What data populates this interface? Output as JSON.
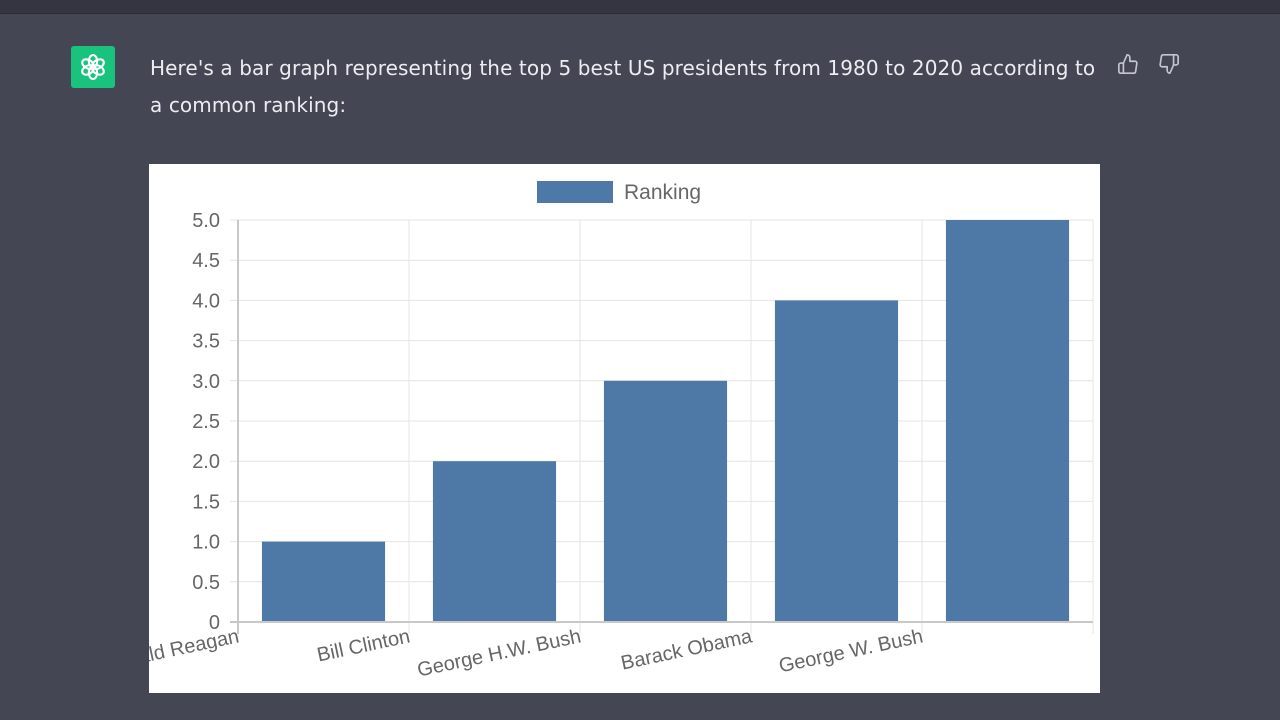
{
  "colors": {
    "background": "#444654",
    "avatar": "#19c37d",
    "text": "#ececf1",
    "bar": "#4e79a7",
    "grid": "#e4e4e4"
  },
  "icons": {
    "avatar": "openai-logo-icon",
    "like": "thumbs-up-icon",
    "dislike": "thumbs-down-icon"
  },
  "message": {
    "text": "Here's a bar graph representing the top 5 best US presidents from 1980 to 2020 according to a common ranking:"
  },
  "chart_data": {
    "type": "bar",
    "title": "",
    "xlabel": "",
    "ylabel": "",
    "legend": [
      "Ranking"
    ],
    "legend_position": "top",
    "grid": true,
    "categories": [
      "Ronald Reagan",
      "Bill Clinton",
      "George H.W. Bush",
      "Barack Obama",
      "George W. Bush"
    ],
    "series": [
      {
        "name": "Ranking",
        "values": [
          1,
          2,
          3,
          4,
          5
        ]
      }
    ],
    "ylim": [
      0,
      5
    ],
    "yticks": [
      "0",
      "0.5",
      "1.0",
      "1.5",
      "2.0",
      "2.5",
      "3.0",
      "3.5",
      "4.0",
      "4.5",
      "5.0"
    ]
  }
}
